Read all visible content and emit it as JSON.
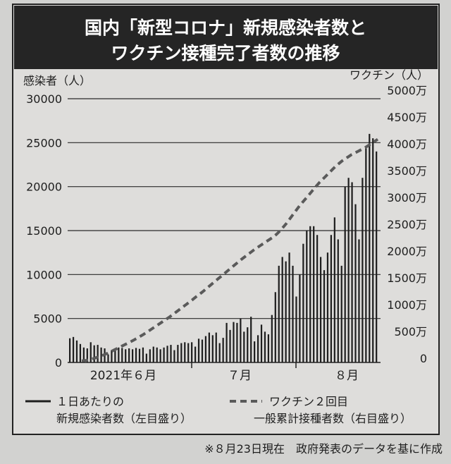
{
  "chart_data": {
    "type": "bar+line",
    "title": [
      "国内「新型コロナ」新規感染者数と",
      "ワクチン接種完了者数の推移"
    ],
    "left_axis": {
      "label": "感染者（人）",
      "ticks": [
        "30000",
        "25000",
        "20000",
        "15000",
        "10000",
        "5000",
        "0"
      ],
      "range": [
        0,
        30000
      ]
    },
    "right_axis": {
      "label": "ワクチン（人）",
      "ticks": [
        "5000万",
        "4500万",
        "4000万",
        "3500万",
        "3000万",
        "2500万",
        "2000万",
        "1500万",
        "1000万",
        "500万",
        "0"
      ],
      "range": [
        0,
        5000
      ]
    },
    "x_labels": [
      "2021年６月",
      "７月",
      "８月"
    ],
    "daily_cases": [
      2750,
      2900,
      2500,
      2100,
      1700,
      1600,
      2300,
      1950,
      2000,
      1700,
      1600,
      900,
      1400,
      1500,
      1700,
      1650,
      1500,
      1600,
      1500,
      1650,
      1550,
      1700,
      1000,
      1500,
      1800,
      1700,
      1500,
      1700,
      1900,
      2000,
      1400,
      2000,
      2200,
      2300,
      2200,
      2300,
      1800,
      2700,
      2600,
      3000,
      3400,
      3100,
      3400,
      2200,
      2800,
      4500,
      3700,
      4600,
      4500,
      5000,
      3500,
      4000,
      5200,
      2400,
      3100,
      4300,
      3500,
      3200,
      5400,
      8000,
      11000,
      12000,
      11500,
      12500,
      11000,
      7500,
      10000,
      13500,
      15000,
      15500,
      15500,
      14500,
      12000,
      10500,
      12500,
      14500,
      16500,
      14000,
      11000,
      20000,
      21000,
      20500,
      18000,
      14000,
      21000,
      24500,
      26000,
      25500,
      24000
    ],
    "vaccine_cumulative_man": [
      30,
      35,
      45,
      60,
      80,
      100,
      120,
      145,
      170,
      200,
      230,
      260,
      290,
      320,
      350,
      380,
      410,
      445,
      480,
      515,
      555,
      595,
      635,
      675,
      715,
      755,
      795,
      835,
      880,
      925,
      970,
      1015,
      1060,
      1105,
      1150,
      1200,
      1245,
      1290,
      1340,
      1390,
      1440,
      1490,
      1540,
      1590,
      1640,
      1690,
      1740,
      1790,
      1840,
      1890,
      1935,
      1980,
      2025,
      2070,
      2110,
      2150,
      2190,
      2230,
      2270,
      2310,
      2360,
      2420,
      2490,
      2560,
      2640,
      2720,
      2800,
      2880,
      2950,
      3020,
      3090,
      3160,
      3230,
      3300,
      3360,
      3420,
      3480,
      3540,
      3600,
      3650,
      3700,
      3740,
      3780,
      3820,
      3850,
      3880,
      3910,
      3940,
      3980,
      4020,
      4060,
      4100
    ],
    "legend": {
      "cases": [
        "１日あたりの",
        "新規感染者数（左目盛り）"
      ],
      "vaccine": [
        "ワクチン２回目",
        "一般累計接種者数（右目盛り）"
      ]
    },
    "note": "※８月23日現在　政府発表のデータを基に作成"
  }
}
